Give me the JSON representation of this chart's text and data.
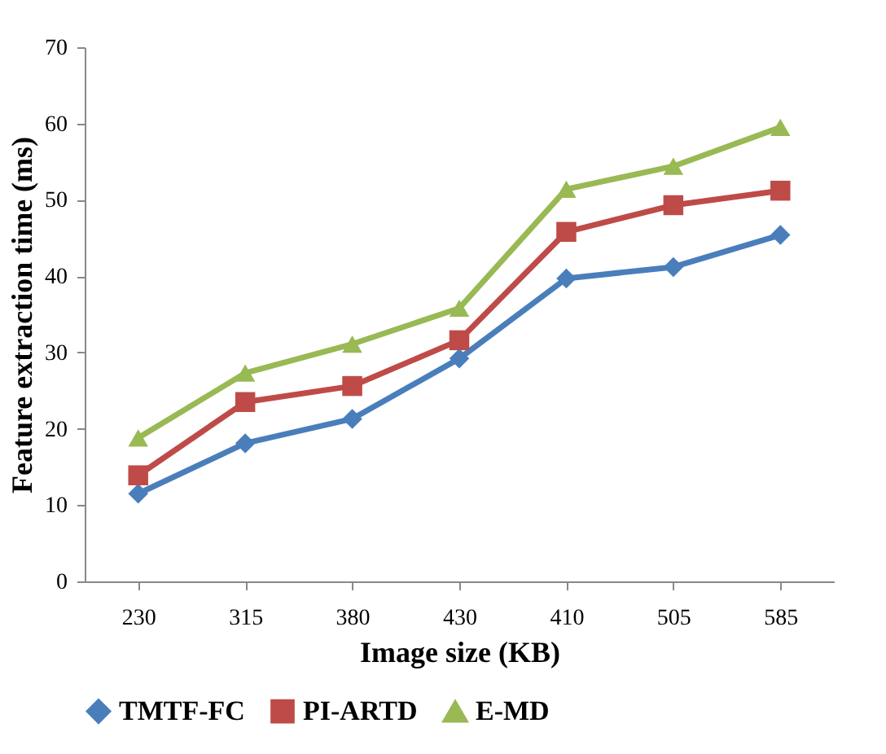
{
  "chart_data": {
    "type": "line",
    "xlabel": "Image size (KB)",
    "ylabel": "Feature extraction time (ms)",
    "categories": [
      "230",
      "315",
      "380",
      "430",
      "410",
      "505",
      "585"
    ],
    "ylim": [
      0,
      70
    ],
    "yticks": [
      0,
      10,
      20,
      30,
      40,
      50,
      60,
      70
    ],
    "grid": false,
    "legend": "bottom",
    "series": [
      {
        "name": "TMTF-FC",
        "color": "#4a7ebb",
        "marker": "diamond",
        "values": [
          11.5,
          18.1,
          21.3,
          29.2,
          39.7,
          41.2,
          45.4
        ]
      },
      {
        "name": "PI-ARTD",
        "color": "#be4b48",
        "marker": "square",
        "values": [
          13.9,
          23.5,
          25.6,
          31.6,
          45.8,
          49.3,
          51.2
        ]
      },
      {
        "name": "E-MD",
        "color": "#98b954",
        "marker": "triangle",
        "values": [
          18.8,
          27.3,
          31.1,
          35.8,
          51.4,
          54.4,
          59.5
        ]
      }
    ]
  }
}
